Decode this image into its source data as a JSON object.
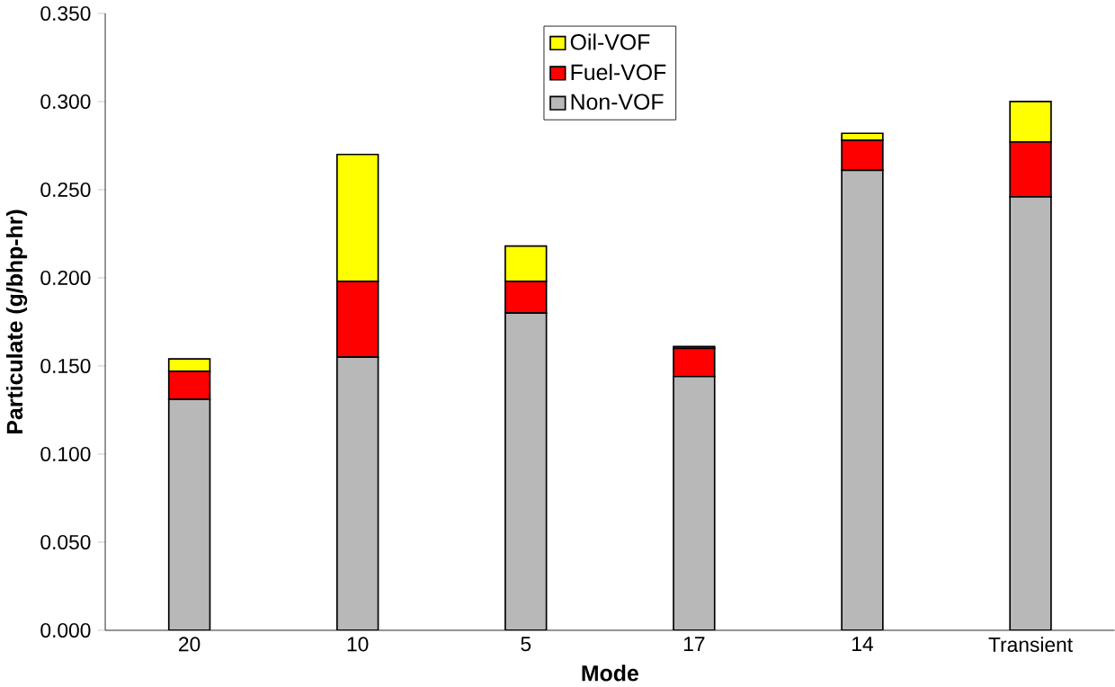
{
  "chart_data": {
    "type": "bar",
    "stacked": true,
    "xlabel": "Mode",
    "ylabel": "Particulate (g/bhp-hr)",
    "categories": [
      "20",
      "10",
      "5",
      "17",
      "14",
      "Transient"
    ],
    "series": [
      {
        "name": "Non-VOF",
        "color": "#b8b8b8",
        "values": [
          0.131,
          0.155,
          0.18,
          0.144,
          0.261,
          0.246
        ]
      },
      {
        "name": "Fuel-VOF",
        "color": "#ff0000",
        "values": [
          0.016,
          0.043,
          0.018,
          0.016,
          0.017,
          0.031
        ]
      },
      {
        "name": "Oil-VOF",
        "color": "#ffff00",
        "values": [
          0.007,
          0.072,
          0.02,
          0.001,
          0.004,
          0.023
        ]
      }
    ],
    "ylim": [
      0,
      0.35
    ],
    "yticks": [
      {
        "value": 0,
        "label": "0.000"
      },
      {
        "value": 0.05,
        "label": "0.050"
      },
      {
        "value": 0.1,
        "label": "0.100"
      },
      {
        "value": 0.15,
        "label": "0.150"
      },
      {
        "value": 0.2,
        "label": "0.200"
      },
      {
        "value": 0.25,
        "label": "0.250"
      },
      {
        "value": 0.3,
        "label": "0.300"
      },
      {
        "value": 0.35,
        "label": "0.350"
      }
    ],
    "grid": false,
    "legend": "top"
  }
}
